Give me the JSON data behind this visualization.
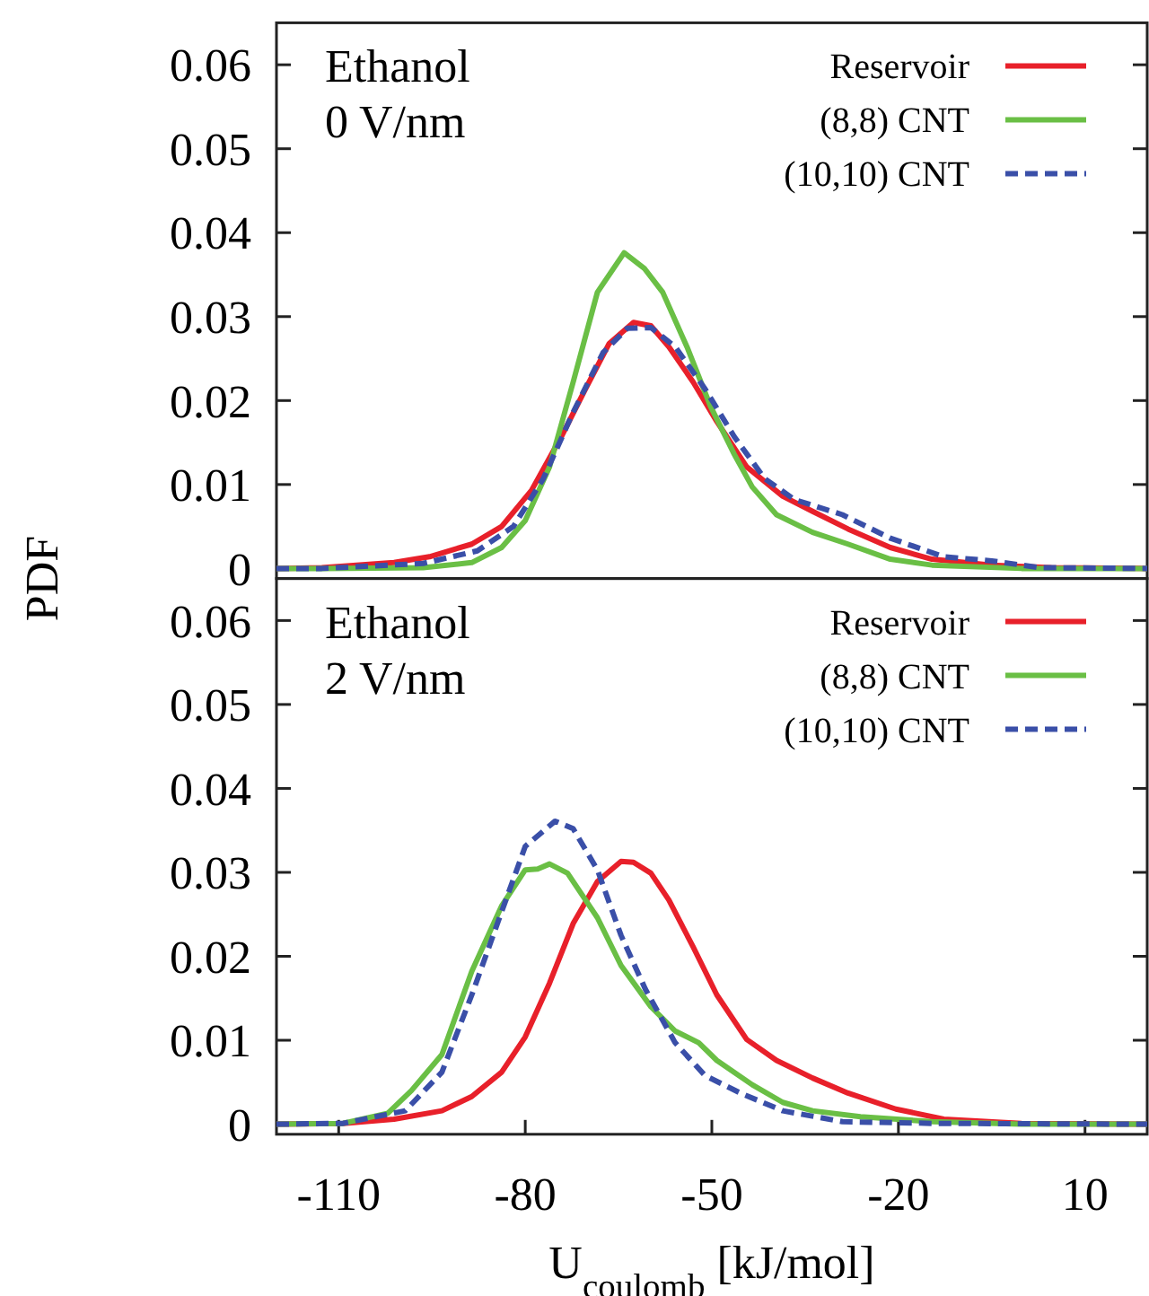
{
  "chart_data": [
    {
      "type": "line",
      "ylabel": "PDF",
      "annotations": [
        "Ethanol",
        "0 V/nm"
      ],
      "legend": "top right",
      "line_style": "solid",
      "xlim": [
        -120,
        20
      ],
      "ylim": [
        -0.0012,
        0.065
      ],
      "yticks": [
        0,
        0.01,
        0.02,
        0.03,
        0.04,
        0.05,
        0.06
      ],
      "tick_labels": "y",
      "series": [
        {
          "name": "Reservoir",
          "color": "#e8202a",
          "x": [
            -120,
            -112.7,
            -101.1,
            -95.4,
            -88.6,
            -83.8,
            -79,
            -74.2,
            -70.3,
            -66.5,
            -62.6,
            -59.8,
            -56.9,
            -53,
            -49.2,
            -44.4,
            -38.6,
            -33.8,
            -28.1,
            -21.3,
            -14.6,
            -5,
            4.6,
            20
          ],
          "values": [
            0,
            0.0001,
            0.0007,
            0.0014,
            0.0029,
            0.005,
            0.0093,
            0.0157,
            0.0214,
            0.0268,
            0.0293,
            0.0289,
            0.0264,
            0.0222,
            0.0175,
            0.0121,
            0.0086,
            0.0068,
            0.0047,
            0.0025,
            0.0011,
            0.0004,
            0.0001,
            0
          ]
        },
        {
          "name": "(8,8) CNT",
          "color": "#6abf45",
          "x": [
            -120,
            -112.7,
            -96.4,
            -88.6,
            -83.8,
            -80,
            -76.1,
            -72.3,
            -68.4,
            -64.1,
            -60.8,
            -57.9,
            -54,
            -50.2,
            -46.4,
            -43.5,
            -39.6,
            -33.8,
            -28.1,
            -21.3,
            -14.6,
            -0.2,
            20
          ],
          "values": [
            0,
            0,
            0.0001,
            0.0007,
            0.0025,
            0.0057,
            0.0121,
            0.0222,
            0.0329,
            0.0376,
            0.0357,
            0.0329,
            0.0264,
            0.0193,
            0.0136,
            0.0097,
            0.0064,
            0.0043,
            0.0029,
            0.0011,
            0.0004,
            0,
            0
          ]
        },
        {
          "name": "(10,10) CNT",
          "color": "#3a4fa8",
          "line_style": "dashed",
          "x": [
            -120,
            -112.7,
            -96.4,
            -87.7,
            -81.9,
            -77.1,
            -72.3,
            -67.5,
            -63.6,
            -59.8,
            -55.9,
            -51.1,
            -46.4,
            -41.5,
            -36.7,
            -29,
            -21.3,
            -12.7,
            -5,
            2.7,
            20
          ],
          "values": [
            0,
            0,
            0.0006,
            0.0021,
            0.005,
            0.0107,
            0.0186,
            0.0257,
            0.0286,
            0.0287,
            0.0264,
            0.0214,
            0.0157,
            0.0107,
            0.0082,
            0.0064,
            0.0036,
            0.0014,
            0.0009,
            0.0001,
            0
          ]
        }
      ]
    },
    {
      "type": "line",
      "xlabel": "U$_{coulomb}$ [kJ/mol]",
      "annotations": [
        "Ethanol",
        "2 V/nm"
      ],
      "legend": "top right",
      "line_style": "solid",
      "xlim": [
        -120,
        20
      ],
      "ylim": [
        -0.0012,
        0.065
      ],
      "yticks": [
        0,
        0.01,
        0.02,
        0.03,
        0.04,
        0.05,
        0.06
      ],
      "xticks": [
        -110,
        -80,
        -50,
        -20,
        10
      ],
      "series": [
        {
          "name": "Reservoir",
          "color": "#e8202a",
          "x": [
            -120,
            -109.3,
            -101.1,
            -93.4,
            -88.6,
            -83.8,
            -80,
            -76.1,
            -72.3,
            -68.4,
            -64.6,
            -62.6,
            -59.8,
            -56.9,
            -53,
            -49.2,
            -44.4,
            -39.6,
            -33.8,
            -28.1,
            -20.4,
            -12.7,
            -0.2,
            20
          ],
          "values": [
            0,
            0.0001,
            0.0006,
            0.0016,
            0.0033,
            0.0062,
            0.0104,
            0.0168,
            0.0239,
            0.0289,
            0.0313,
            0.0312,
            0.0299,
            0.0267,
            0.0211,
            0.0154,
            0.0101,
            0.0076,
            0.0055,
            0.0037,
            0.0018,
            0.0006,
            0.0001,
            0
          ]
        },
        {
          "name": "(8,8) CNT",
          "color": "#6abf45",
          "x": [
            -120,
            -109.3,
            -102.1,
            -98.3,
            -93.4,
            -88.6,
            -83.8,
            -80,
            -78,
            -76.1,
            -73.2,
            -68.4,
            -64.6,
            -59.8,
            -55.9,
            -52.1,
            -49.2,
            -43.5,
            -38.6,
            -33.8,
            -26.1,
            -14.6,
            -0.2,
            20
          ],
          "values": [
            0,
            0.0001,
            0.0013,
            0.004,
            0.0083,
            0.0182,
            0.026,
            0.0303,
            0.0304,
            0.031,
            0.0299,
            0.0246,
            0.0189,
            0.014,
            0.0111,
            0.0097,
            0.0076,
            0.0047,
            0.0026,
            0.0016,
            0.0009,
            0.0003,
            0,
            0
          ]
        },
        {
          "name": "(10,10) CNT",
          "color": "#3a4fa8",
          "line_style": "dashed",
          "x": [
            -120,
            -109.3,
            -99.3,
            -93.4,
            -88.6,
            -83.8,
            -80,
            -75.2,
            -72.3,
            -68.4,
            -64.6,
            -60.7,
            -55.9,
            -51.1,
            -45.4,
            -38.6,
            -29,
            -14.6,
            20
          ],
          "values": [
            0,
            0.0001,
            0.0016,
            0.0062,
            0.0154,
            0.0253,
            0.0331,
            0.0361,
            0.0352,
            0.0303,
            0.0225,
            0.0161,
            0.0097,
            0.0058,
            0.0037,
            0.0016,
            0.0003,
            0.0001,
            0
          ]
        }
      ]
    }
  ]
}
